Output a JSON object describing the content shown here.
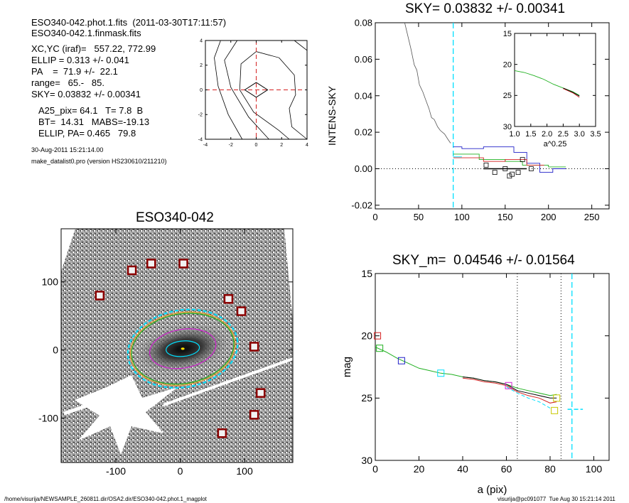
{
  "header": {
    "line1": "ESO340-042.phot.1.fits  (2011-03-30T17:11:57)",
    "line2": "ESO340-042.1.finmask.fits",
    "xcyc": "XC,YC (iraf)=   557.22, 772.99",
    "ellip": "ELLIP = 0.313 +/- 0.041",
    "pa": "PA    =  71.9 +/-  22.1",
    "range": "range=   65.-   85.",
    "sky": "SKY= 0.03832 +/- 0.00341",
    "a25": "A25_pix= 64.1   T= 7.8  B",
    "bt": "BT=  14.31   MABS=-19.13",
    "ellip_pa": "ELLIP, PA= 0.465   79.8",
    "date": "30-Aug-2011 15:21:14.00",
    "program": "make_datalist0.pro (version HS230610/211210)"
  },
  "footer": {
    "path": "/home/visurija/NEWSAMPLE_260811.dir/OSA2.dir/ESO340-042.phot.1_magplot",
    "user": "visurija@pc091077  Tue Aug 30 15:21:14 2011"
  },
  "colors": {
    "red": "#d42020",
    "green": "#20b020",
    "blue": "#2020c8",
    "cyan": "#00e0ff",
    "yellow": "#c8c800",
    "magenta": "#d020d0",
    "orange": "#e8a020",
    "gray": "#888888"
  },
  "chart_data": [
    {
      "id": "contour",
      "type": "contour",
      "title": "",
      "xlim": [
        -4,
        4
      ],
      "ylim": [
        -4,
        4
      ],
      "xticks": [
        "-4",
        "-2",
        "0",
        "2",
        "4"
      ],
      "yticks": [
        "-4",
        "-2",
        "0",
        "2",
        "4"
      ],
      "xticks_v": [
        -4,
        -2,
        0,
        2,
        4
      ],
      "yticks_v": [
        -4,
        -2,
        0,
        2,
        4
      ],
      "contours": [
        [
          [
            -1.1,
            -4
          ],
          [
            -2.2,
            -2
          ],
          [
            -3.0,
            0.3
          ],
          [
            -3.3,
            2.6
          ],
          [
            -2.8,
            4
          ]
        ],
        [
          [
            1.0,
            -4
          ],
          [
            -0.6,
            -2.2
          ],
          [
            -2.0,
            0.2
          ],
          [
            -2.5,
            2.4
          ],
          [
            -1.5,
            4
          ]
        ],
        [
          [
            2.6,
            -4
          ],
          [
            1.8,
            -3.3
          ],
          [
            -0.2,
            -1.8
          ],
          [
            -1.3,
            0
          ],
          [
            -1.2,
            2.1
          ],
          [
            0.0,
            3.1
          ],
          [
            1.8,
            2.6
          ],
          [
            3.0,
            1.2
          ],
          [
            3.1,
            -0.4
          ],
          [
            2.6,
            -1.5
          ],
          [
            2.8,
            -3.0
          ],
          [
            4,
            -4
          ]
        ],
        [
          [
            4,
            3.2
          ],
          [
            3.0,
            4
          ]
        ]
      ],
      "diamond": [
        [
          0,
          0.6
        ],
        [
          0.9,
          0
        ],
        [
          0,
          -0.6
        ],
        [
          -0.9,
          0
        ]
      ]
    },
    {
      "id": "sky",
      "type": "line",
      "title": "SKY= 0.03832 +/- 0.00341",
      "xlabel": "",
      "ylabel": "INTENS-SKY",
      "xlim": [
        0,
        270
      ],
      "ylim": [
        -0.022,
        0.08
      ],
      "xticks": [
        "0",
        "50",
        "100",
        "150",
        "200",
        "250"
      ],
      "yticks": [
        "-0.02",
        "0.00",
        "0.02",
        "0.04",
        "0.06",
        "0.08"
      ],
      "xticks_v": [
        0,
        50,
        100,
        150,
        200,
        250
      ],
      "yticks_v": [
        -0.02,
        0,
        0.02,
        0.04,
        0.06,
        0.08
      ],
      "sky_level": 0,
      "vline_x": 90,
      "profile": {
        "x": [
          34,
          38,
          41,
          45,
          48,
          51,
          55,
          58,
          62,
          65,
          68,
          72,
          75,
          80,
          84,
          87
        ],
        "y": [
          0.08,
          0.072,
          0.066,
          0.057,
          0.054,
          0.046,
          0.042,
          0.038,
          0.033,
          0.028,
          0.027,
          0.023,
          0.021,
          0.019,
          0.016,
          0.014
        ]
      },
      "series": [
        {
          "name": "",
          "color": "blue",
          "x": [
            90,
            100,
            100,
            125,
            125,
            160,
            160,
            175,
            175,
            190,
            190,
            205,
            205,
            220
          ],
          "y": [
            0.012,
            0.012,
            0.011,
            0.011,
            0.012,
            0.012,
            0.009,
            0.009,
            0.003,
            0.003,
            -0.002,
            -0.002,
            0.0,
            0.0
          ]
        },
        {
          "name": "",
          "color": "green",
          "x": [
            90,
            120,
            120,
            150,
            150,
            170,
            170,
            200,
            200,
            220
          ],
          "y": [
            0.008,
            0.008,
            0.005,
            0.005,
            0.004,
            0.004,
            0.002,
            0.002,
            0.001,
            0.001
          ]
        },
        {
          "name": "",
          "color": "red",
          "x": [
            90,
            125,
            125,
            150,
            150,
            175,
            175,
            195
          ],
          "y": [
            0.006,
            0.006,
            0.004,
            0.004,
            0.005,
            0.005,
            0.002,
            0.002
          ]
        },
        {
          "name": "",
          "color": "black",
          "x": [
            125,
            175
          ],
          "y": [
            0.0,
            0.0
          ]
        },
        {
          "name": "",
          "color": "cyan",
          "x": [
            90,
            100
          ],
          "y": [
            0.0065,
            0.0065
          ]
        }
      ],
      "squares": {
        "x": [
          128,
          138,
          150,
          155,
          158,
          165,
          170,
          180
        ],
        "y": [
          0.002,
          -0.002,
          0.0,
          -0.004,
          -0.003,
          -0.002,
          0.005,
          0.0
        ]
      },
      "inset": {
        "xlabel": "a^0.25",
        "xlim": [
          1.0,
          3.5
        ],
        "ylim": [
          30,
          15
        ],
        "xticks": [
          "1.0",
          "1.5",
          "2.0",
          "2.5",
          "3.0",
          "3.5"
        ],
        "yticks": [
          "15",
          "20",
          "25",
          "30"
        ],
        "xticks_v": [
          1.0,
          1.5,
          2.0,
          2.5,
          3.0,
          3.5
        ],
        "yticks_v": [
          15,
          20,
          25,
          30
        ],
        "series": [
          {
            "name": "",
            "color": "green",
            "x": [
              1.0,
              1.3,
              1.6,
              1.9,
              2.2,
              2.5,
              2.8,
              3.0
            ],
            "y": [
              21.0,
              21.3,
              21.8,
              22.4,
              23.2,
              23.8,
              24.4,
              25.0
            ]
          },
          {
            "name": "",
            "color": "red",
            "x": [
              2.5,
              2.8,
              3.0
            ],
            "y": [
              23.9,
              24.6,
              25.3
            ]
          },
          {
            "name": "",
            "color": "black",
            "x": [
              2.5,
              2.8,
              3.0
            ],
            "y": [
              23.8,
              24.5,
              25.1
            ]
          }
        ]
      }
    },
    {
      "id": "image",
      "type": "image",
      "title": "ESO340-042",
      "xlim": [
        -185,
        175
      ],
      "ylim": [
        -165,
        178
      ],
      "xticks": [
        "-100",
        "0",
        "100"
      ],
      "yticks": [
        "-100",
        "0",
        "100"
      ],
      "xticks_v": [
        -100,
        0,
        100
      ],
      "yticks_v": [
        -100,
        0,
        100
      ],
      "stars": {
        "x": [
          -125,
          -75,
          -45,
          5,
          75,
          95,
          115,
          125,
          115,
          65
        ],
        "y": [
          80,
          117,
          127,
          127,
          75,
          57,
          5,
          -63,
          -95,
          -122
        ]
      },
      "ellipses": [
        {
          "color": "orange",
          "cx": 4,
          "cy": 2,
          "a": 82,
          "b": 56,
          "pa": 10
        },
        {
          "color": "green",
          "cx": 4,
          "cy": 2,
          "a": 80,
          "b": 54,
          "pa": 10
        },
        {
          "color": "cyan",
          "cx": 4,
          "cy": 2,
          "a": 86,
          "b": 60,
          "pa": 10,
          "dashed": true
        },
        {
          "color": "magenta",
          "cx": 4,
          "cy": 2,
          "a": 52,
          "b": 30,
          "pa": 10
        },
        {
          "color": "cyan",
          "cx": 4,
          "cy": 2,
          "a": 26,
          "b": 12,
          "pa": 5
        }
      ]
    },
    {
      "id": "mag",
      "type": "line",
      "title": "SKY_m=  0.04546 +/- 0.01564",
      "xlabel": "a (pix)",
      "ylabel": "mag",
      "xlim": [
        0,
        107
      ],
      "ylim": [
        30,
        15
      ],
      "xticks": [
        "0",
        "20",
        "40",
        "60",
        "80",
        "100"
      ],
      "yticks": [
        "15",
        "20",
        "25",
        "30"
      ],
      "xticks_v": [
        0,
        20,
        40,
        60,
        80,
        100
      ],
      "yticks_v": [
        15,
        20,
        25,
        30
      ],
      "vlines_dotted": [
        65,
        85
      ],
      "vline_cyan": 90,
      "cyan_hbar": {
        "x": [
          88,
          95
        ],
        "y": 25.9
      },
      "series": [
        {
          "name": "",
          "color": "green",
          "x": [
            0,
            5,
            10,
            15,
            20,
            25,
            30,
            35,
            40,
            45,
            50,
            55,
            60,
            65,
            70,
            75,
            80,
            83
          ],
          "y": [
            20.9,
            21.3,
            21.8,
            22.2,
            22.6,
            22.8,
            23.0,
            23.1,
            23.3,
            23.4,
            23.6,
            23.7,
            23.9,
            24.2,
            24.4,
            24.6,
            24.8,
            24.7
          ]
        },
        {
          "name": "",
          "color": "black",
          "x": [
            40,
            45,
            50,
            55,
            60,
            65,
            70,
            75,
            80,
            83
          ],
          "y": [
            23.3,
            23.4,
            23.6,
            23.7,
            23.9,
            24.4,
            24.6,
            24.8,
            25.0,
            25.0
          ]
        },
        {
          "name": "",
          "color": "red",
          "x": [
            40,
            45,
            50,
            55,
            60,
            65,
            70,
            75,
            80,
            83
          ],
          "y": [
            23.4,
            23.5,
            23.7,
            23.8,
            24.0,
            24.5,
            24.8,
            25.0,
            25.4,
            25.3
          ]
        },
        {
          "name": "",
          "color": "cyan",
          "x": [
            60,
            65,
            70,
            75,
            80
          ],
          "y": [
            24.1,
            24.6,
            25.0,
            25.3,
            25.8
          ],
          "dashed": true
        }
      ],
      "squares": [
        {
          "color": "red",
          "x": 1,
          "y": 20.0
        },
        {
          "color": "green",
          "x": 2,
          "y": 21.0
        },
        {
          "color": "blue",
          "x": 12,
          "y": 22.0
        },
        {
          "color": "cyan",
          "x": 30,
          "y": 23.0
        },
        {
          "color": "magenta",
          "x": 61,
          "y": 24.0
        },
        {
          "color": "yellow",
          "x": 82,
          "y": 26.0
        },
        {
          "color": "yellow",
          "x": 83,
          "y": 25.0
        }
      ]
    }
  ]
}
